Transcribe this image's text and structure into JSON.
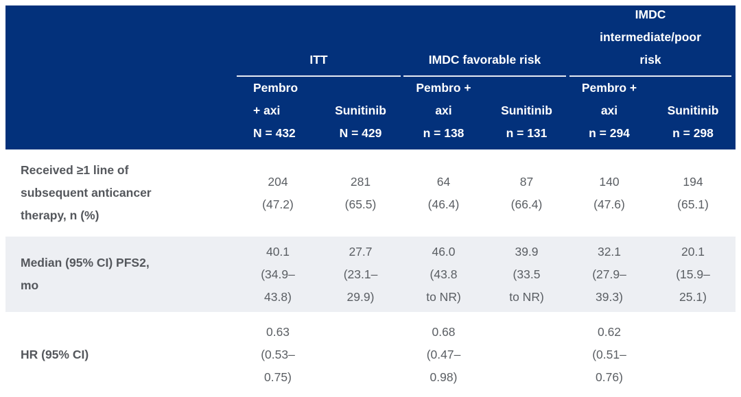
{
  "theme": {
    "header_bg": "#03317b",
    "header_text": "#ffffff",
    "alt_row_bg": "#edeff3",
    "label_text": "#54575c",
    "value_text": "#5a5e63",
    "group_underline": "#e7ebf3"
  },
  "chart_data": {
    "type": "table",
    "column_groups": [
      {
        "label": "ITT",
        "columns": [
          "Pembro\n+ axi\nN = 432",
          "Sunitinib\nN = 429"
        ]
      },
      {
        "label": "IMDC favorable risk",
        "columns": [
          "Pembro +\naxi\nn = 138",
          "Sunitinib\nn = 131"
        ]
      },
      {
        "label": "IMDC\nintermediate/poor\nrisk",
        "columns": [
          "Pembro +\naxi\nn = 294",
          "Sunitinib\nn = 298"
        ]
      }
    ],
    "rows": [
      {
        "label": "Received ≥1 line of\nsubsequent anticancer\ntherapy, n (%)",
        "values": [
          "204\n(47.2)",
          "281\n(65.5)",
          "64\n(46.4)",
          "87\n(66.4)",
          "140\n(47.6)",
          "194\n(65.1)"
        ]
      },
      {
        "label": "Median (95% CI) PFS2,\nmo",
        "values": [
          "40.1\n(34.9–\n43.8)",
          "27.7\n(23.1–\n29.9)",
          "46.0\n(43.8\nto NR)",
          "39.9\n(33.5\nto NR)",
          "32.1\n(27.9–\n39.3)",
          "20.1\n(15.9–\n25.1)"
        ]
      },
      {
        "label": "HR (95% CI)",
        "values": [
          "0.63\n(0.53–\n0.75)",
          "",
          "0.68\n(0.47–\n0.98)",
          "",
          "0.62\n(0.51–\n0.76)",
          ""
        ]
      }
    ]
  }
}
